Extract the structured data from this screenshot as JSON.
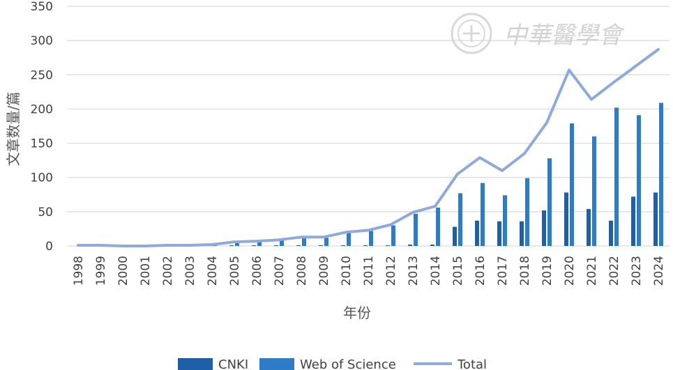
{
  "chart_data": {
    "type": "bar",
    "title": "",
    "xlabel": "年份",
    "ylabel": "文章数量/篇",
    "ylim": [
      0,
      350
    ],
    "yticks": [
      0,
      50,
      100,
      150,
      200,
      250,
      300,
      350
    ],
    "grid": true,
    "legend_position": "bottom",
    "categories": [
      "1998",
      "1999",
      "2000",
      "2001",
      "2002",
      "2003",
      "2004",
      "2005",
      "2006",
      "2007",
      "2008",
      "2009",
      "2010",
      "2011",
      "2012",
      "2013",
      "2014",
      "2015",
      "2016",
      "2017",
      "2018",
      "2019",
      "2020",
      "2021",
      "2022",
      "2023",
      "2024"
    ],
    "series": [
      {
        "name": "CNKI",
        "kind": "bar",
        "color": "#1f5fa8",
        "values": [
          0,
          0,
          0,
          0,
          0,
          0,
          0,
          1,
          1,
          1,
          1,
          1,
          1,
          1,
          1,
          2,
          2,
          28,
          37,
          36,
          36,
          52,
          78,
          54,
          37,
          72,
          78
        ]
      },
      {
        "name": "Web of Science",
        "kind": "bar",
        "color": "#2f7cc6",
        "values": [
          1,
          1,
          0,
          0,
          1,
          1,
          2,
          5,
          6,
          8,
          12,
          12,
          19,
          22,
          30,
          47,
          56,
          77,
          92,
          74,
          99,
          128,
          179,
          160,
          202,
          191,
          209
        ]
      },
      {
        "name": "Total",
        "kind": "line",
        "color": "#8ea9db",
        "values": [
          1,
          1,
          0,
          0,
          1,
          1,
          2,
          6,
          7,
          9,
          13,
          13,
          20,
          23,
          31,
          49,
          58,
          105,
          129,
          110,
          135,
          180,
          257,
          214,
          239,
          263,
          287
        ]
      }
    ]
  },
  "watermark": {
    "text": "中華醫學會"
  }
}
